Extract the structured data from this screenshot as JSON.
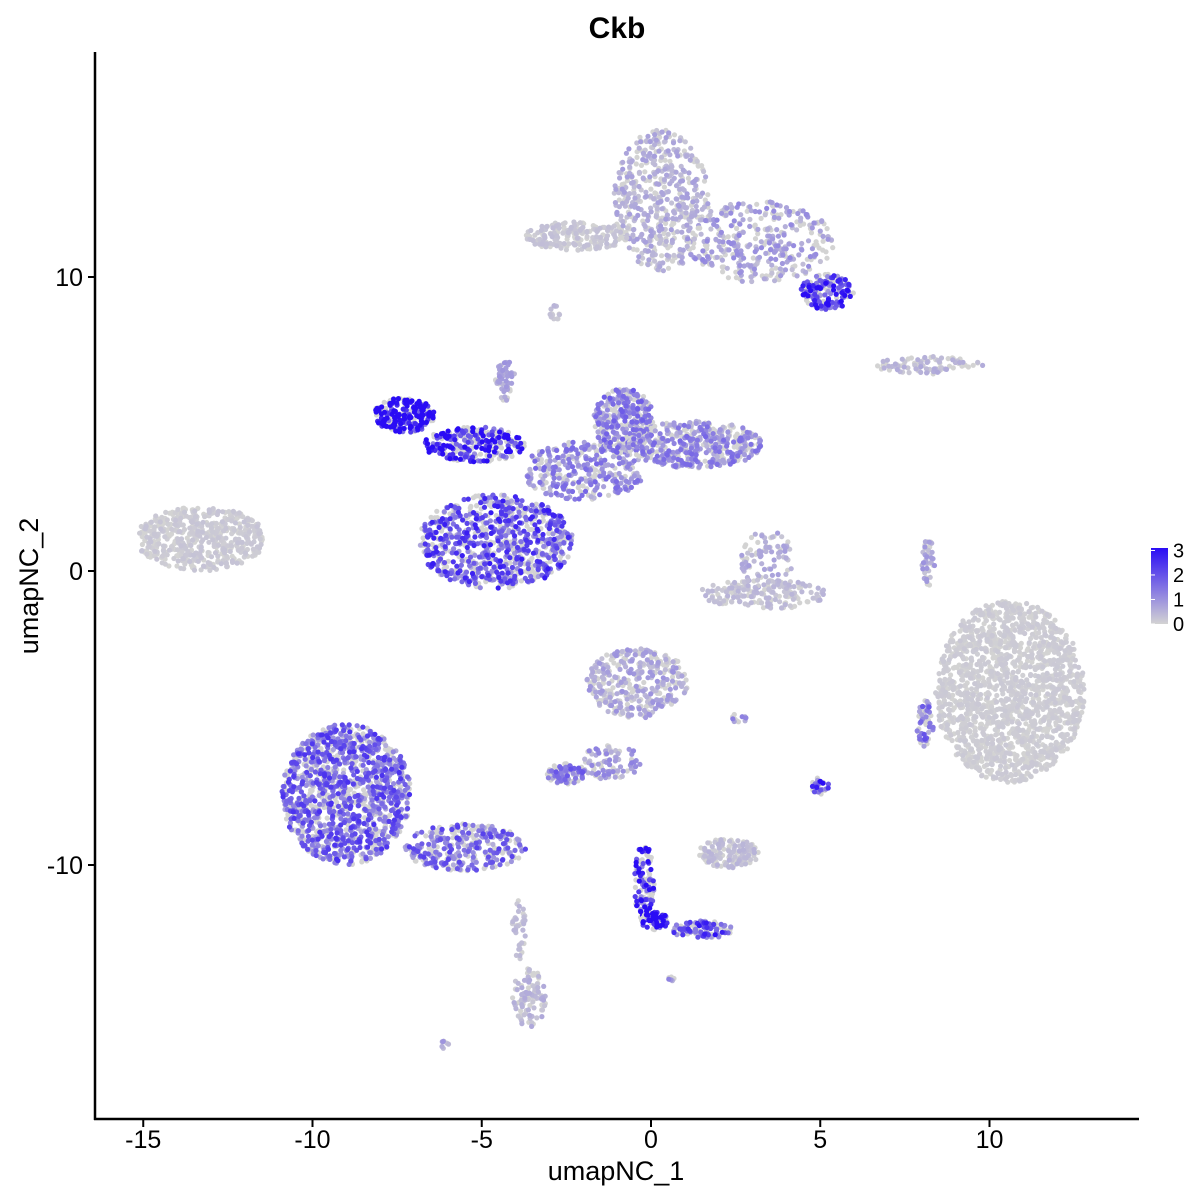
{
  "chart_data": {
    "type": "scatter",
    "title": "Ckb",
    "xlabel": "umapNC_1",
    "ylabel": "umapNC_2",
    "xlim": [
      -16.4,
      14.5
    ],
    "ylim": [
      -18.5,
      17.7
    ],
    "x_ticks": [
      -15,
      -10,
      -5,
      0,
      5,
      10
    ],
    "x_tick_labels": [
      "-15",
      "-10",
      "-5",
      "0",
      "5",
      "10"
    ],
    "y_ticks": [
      -10,
      0,
      10
    ],
    "y_tick_labels": [
      "-10",
      "0",
      "10"
    ],
    "grid": false,
    "legend_position": "right",
    "color_scale": {
      "low_color": "#d3d3d3",
      "high_color": "#2a0cf5",
      "min": 0,
      "max": 3.1,
      "breaks": [
        3,
        2,
        1,
        0
      ],
      "break_labels": [
        "3",
        "2",
        "1",
        "0"
      ]
    },
    "clusters": [
      {
        "cx": 0.3,
        "cy": 12.6,
        "rx": 1.4,
        "ry": 2.4,
        "n": 520,
        "expr": 0.5
      },
      {
        "cx": 3.2,
        "cy": 11.2,
        "rx": 2.2,
        "ry": 1.4,
        "n": 360,
        "expr": 0.7
      },
      {
        "cx": 5.2,
        "cy": 9.5,
        "rx": 0.8,
        "ry": 0.6,
        "n": 170,
        "expr": 2.0
      },
      {
        "cx": -2.2,
        "cy": 11.4,
        "rx": 1.5,
        "ry": 0.5,
        "n": 200,
        "expr": 0.2
      },
      {
        "cx": -2.8,
        "cy": 8.8,
        "rx": 0.25,
        "ry": 0.3,
        "n": 15,
        "expr": 0.3
      },
      {
        "cx": 8.2,
        "cy": 7.0,
        "rx": 1.6,
        "ry": 0.3,
        "n": 90,
        "expr": 0.4
      },
      {
        "cx": -7.3,
        "cy": 5.3,
        "rx": 0.9,
        "ry": 0.6,
        "n": 240,
        "expr": 2.9
      },
      {
        "cx": -5.2,
        "cy": 4.3,
        "rx": 1.5,
        "ry": 0.6,
        "n": 260,
        "expr": 2.5
      },
      {
        "cx": -4.6,
        "cy": 1.0,
        "rx": 2.3,
        "ry": 1.6,
        "n": 850,
        "expr": 1.7
      },
      {
        "cx": -2.0,
        "cy": 3.4,
        "rx": 1.8,
        "ry": 1.0,
        "n": 320,
        "expr": 1.0
      },
      {
        "cx": -0.8,
        "cy": 5.1,
        "rx": 0.9,
        "ry": 1.1,
        "n": 330,
        "expr": 1.1
      },
      {
        "cx": 1.3,
        "cy": 4.3,
        "rx": 2.0,
        "ry": 0.8,
        "n": 460,
        "expr": 1.0
      },
      {
        "cx": -4.3,
        "cy": 6.5,
        "rx": 0.3,
        "ry": 0.7,
        "n": 60,
        "expr": 0.6
      },
      {
        "cx": -13.3,
        "cy": 1.1,
        "rx": 1.9,
        "ry": 1.1,
        "n": 520,
        "expr": 0.15
      },
      {
        "cx": 3.4,
        "cy": 0.4,
        "rx": 0.8,
        "ry": 1.0,
        "n": 90,
        "expr": 0.5
      },
      {
        "cx": 3.3,
        "cy": -0.8,
        "rx": 1.9,
        "ry": 0.5,
        "n": 190,
        "expr": 0.3
      },
      {
        "cx": 8.2,
        "cy": 0.3,
        "rx": 0.2,
        "ry": 0.8,
        "n": 40,
        "expr": 0.6
      },
      {
        "cx": 10.6,
        "cy": -4.1,
        "rx": 2.2,
        "ry": 3.1,
        "n": 1700,
        "expr": 0.1
      },
      {
        "cx": 8.1,
        "cy": -5.2,
        "rx": 0.25,
        "ry": 0.8,
        "n": 60,
        "expr": 1.3
      },
      {
        "cx": -0.4,
        "cy": -3.8,
        "rx": 1.5,
        "ry": 1.2,
        "n": 360,
        "expr": 0.6
      },
      {
        "cx": -1.2,
        "cy": -6.5,
        "rx": 0.9,
        "ry": 0.6,
        "n": 90,
        "expr": 0.8
      },
      {
        "cx": -2.5,
        "cy": -6.9,
        "rx": 0.6,
        "ry": 0.35,
        "n": 90,
        "expr": 1.2
      },
      {
        "cx": 2.6,
        "cy": -5.0,
        "rx": 0.25,
        "ry": 0.15,
        "n": 12,
        "expr": 0.8
      },
      {
        "cx": 5.0,
        "cy": -7.3,
        "rx": 0.25,
        "ry": 0.3,
        "n": 30,
        "expr": 2.0
      },
      {
        "cx": 2.3,
        "cy": -9.6,
        "rx": 0.9,
        "ry": 0.5,
        "n": 140,
        "expr": 0.3
      },
      {
        "cx": -9.0,
        "cy": -7.6,
        "rx": 1.9,
        "ry": 2.4,
        "n": 1300,
        "expr": 1.5
      },
      {
        "cx": -5.5,
        "cy": -9.4,
        "rx": 1.8,
        "ry": 0.8,
        "n": 300,
        "expr": 1.4
      },
      {
        "cx": -3.6,
        "cy": -14.5,
        "rx": 0.5,
        "ry": 1.0,
        "n": 100,
        "expr": 0.4
      },
      {
        "cx": -3.9,
        "cy": -12.2,
        "rx": 0.2,
        "ry": 1.0,
        "n": 35,
        "expr": 0.3
      },
      {
        "cx": -0.2,
        "cy": -10.6,
        "rx": 0.3,
        "ry": 1.3,
        "n": 110,
        "expr": 2.2
      },
      {
        "cx": 0.1,
        "cy": -11.9,
        "rx": 0.4,
        "ry": 0.3,
        "n": 60,
        "expr": 3.0
      },
      {
        "cx": 1.5,
        "cy": -12.2,
        "rx": 0.9,
        "ry": 0.3,
        "n": 110,
        "expr": 1.8
      },
      {
        "cx": 0.6,
        "cy": -13.9,
        "rx": 0.1,
        "ry": 0.1,
        "n": 6,
        "expr": 0.8
      },
      {
        "cx": -6.1,
        "cy": -16.1,
        "rx": 0.15,
        "ry": 0.15,
        "n": 8,
        "expr": 0.6
      }
    ]
  }
}
